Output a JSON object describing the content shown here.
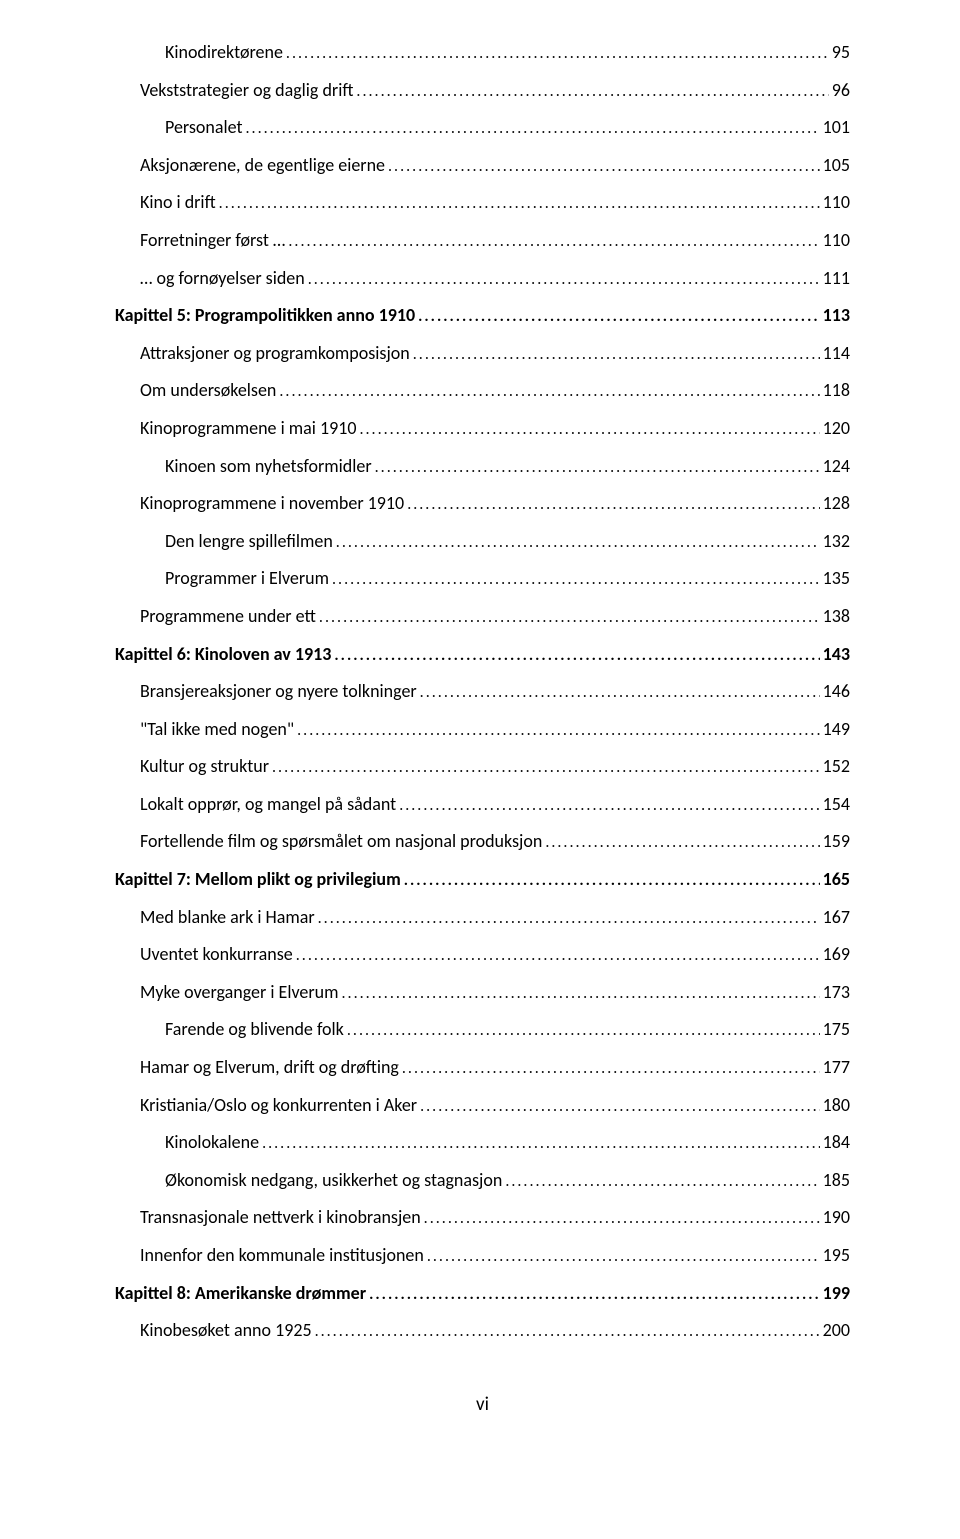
{
  "entries": [
    {
      "title": "Kinodirektørene",
      "page": "95",
      "indent": 2
    },
    {
      "title": "Vekststrategier og daglig drift",
      "page": "96",
      "indent": 1
    },
    {
      "title": "Personalet",
      "page": "101",
      "indent": 2
    },
    {
      "title": "Aksjonærene, de egentlige eierne",
      "page": "105",
      "indent": 1
    },
    {
      "title": "Kino i drift",
      "page": "110",
      "indent": 1
    },
    {
      "title": "Forretninger først …",
      "page": "110",
      "indent": 1
    },
    {
      "title": "… og fornøyelser siden",
      "page": "111",
      "indent": 1
    },
    {
      "title": "Kapittel 5:  Programpolitikken anno 1910",
      "page": "113",
      "indent": 0
    },
    {
      "title": "Attraksjoner og programkomposisjon",
      "page": "114",
      "indent": 1
    },
    {
      "title": "Om undersøkelsen",
      "page": "118",
      "indent": 1
    },
    {
      "title": "Kinoprogrammene i mai 1910",
      "page": "120",
      "indent": 1
    },
    {
      "title": "Kinoen som nyhetsformidler",
      "page": "124",
      "indent": 2
    },
    {
      "title": "Kinoprogrammene i november 1910",
      "page": "128",
      "indent": 1
    },
    {
      "title": "Den lengre spillefilmen",
      "page": "132",
      "indent": 2
    },
    {
      "title": "Programmer i Elverum",
      "page": "135",
      "indent": 2
    },
    {
      "title": "Programmene under ett",
      "page": "138",
      "indent": 1
    },
    {
      "title": "Kapittel 6:  Kinoloven av 1913",
      "page": "143",
      "indent": 0
    },
    {
      "title": "Bransjereaksjoner og nyere tolkninger",
      "page": "146",
      "indent": 1
    },
    {
      "title": "\"Tal ikke med nogen\"",
      "page": "149",
      "indent": 1
    },
    {
      "title": "Kultur og struktur",
      "page": "152",
      "indent": 1
    },
    {
      "title": "Lokalt opprør, og mangel på sådant",
      "page": "154",
      "indent": 1
    },
    {
      "title": "Fortellende film og spørsmålet om nasjonal produksjon",
      "page": "159",
      "indent": 1
    },
    {
      "title": "Kapittel 7:  Mellom plikt og privilegium",
      "page": "165",
      "indent": 0
    },
    {
      "title": "Med blanke ark i Hamar",
      "page": "167",
      "indent": 1
    },
    {
      "title": "Uventet konkurranse",
      "page": "169",
      "indent": 1
    },
    {
      "title": "Myke overganger i Elverum",
      "page": "173",
      "indent": 1
    },
    {
      "title": "Farende og blivende folk",
      "page": "175",
      "indent": 2
    },
    {
      "title": "Hamar og Elverum, drift og drøfting",
      "page": "177",
      "indent": 1
    },
    {
      "title": "Kristiania/Oslo og konkurrenten i Aker",
      "page": "180",
      "indent": 1
    },
    {
      "title": "Kinolokalene",
      "page": "184",
      "indent": 2
    },
    {
      "title": "Økonomisk nedgang, usikkerhet og stagnasjon",
      "page": "185",
      "indent": 2
    },
    {
      "title": "Transnasjonale nettverk i kinobransjen",
      "page": "190",
      "indent": 1
    },
    {
      "title": "Innenfor den kommunale institusjonen",
      "page": "195",
      "indent": 1
    },
    {
      "title": "Kapittel 8:  Amerikanske drømmer",
      "page": "199",
      "indent": 0
    },
    {
      "title": "Kinobesøket anno 1925",
      "page": "200",
      "indent": 1
    }
  ],
  "page_number": "vi"
}
